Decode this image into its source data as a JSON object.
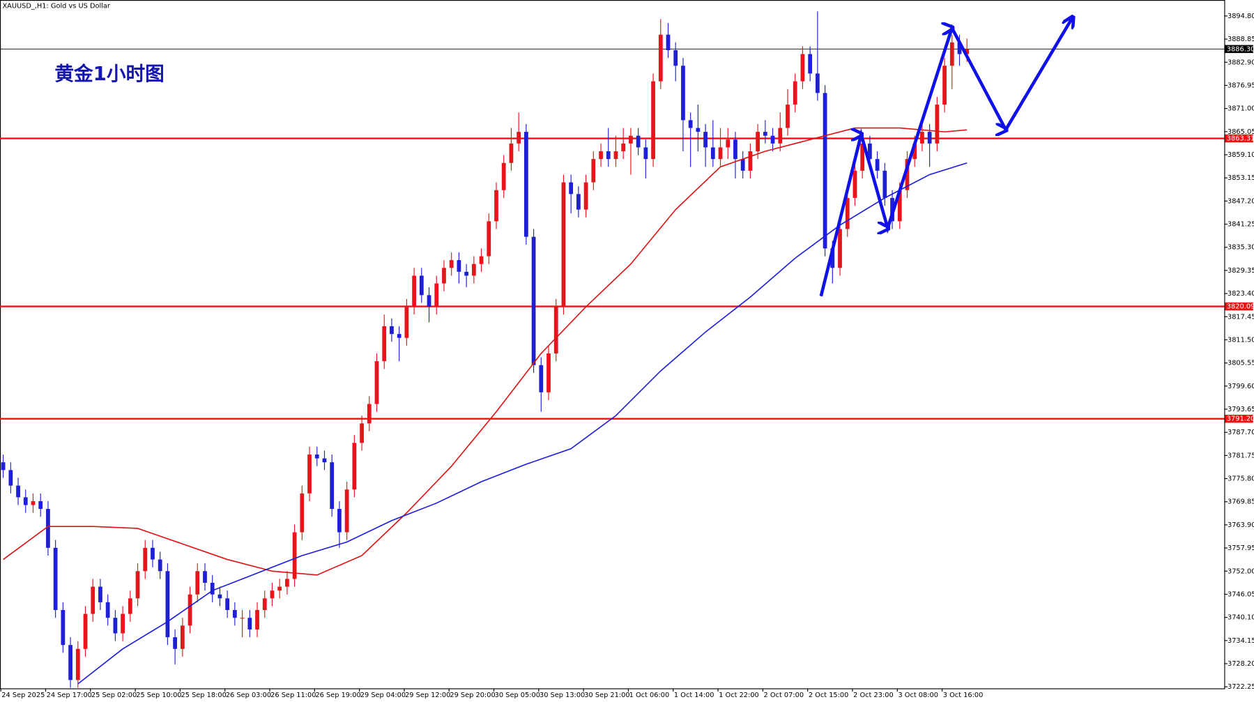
{
  "chart_data": {
    "type": "candlestick",
    "title": "XAUUSD_,H1:  Gold vs US Dollar",
    "annotation": "黄金1小时图",
    "categories": [
      "24 Sep 2025",
      null,
      null,
      null,
      null,
      null,
      "24 Sep 17:00",
      null,
      null,
      null,
      null,
      null,
      "25 Sep 02:00",
      null,
      null,
      null,
      null,
      null,
      "25 Sep 10:00",
      null,
      null,
      null,
      null,
      null,
      "25 Sep 18:00",
      null,
      null,
      null,
      null,
      null,
      "26 Sep 03:00",
      null,
      null,
      null,
      null,
      null,
      "26 Sep 11:00",
      null,
      null,
      null,
      null,
      null,
      "26 Sep 19:00",
      null,
      null,
      null,
      null,
      null,
      "29 Sep 04:00",
      null,
      null,
      null,
      null,
      null,
      "29 Sep 12:00",
      null,
      null,
      null,
      null,
      null,
      "29 Sep 20:00",
      null,
      null,
      null,
      null,
      null,
      "30 Sep 05:00",
      null,
      null,
      null,
      null,
      null,
      "30 Sep 13:00",
      null,
      null,
      null,
      null,
      null,
      "30 Sep 21:00",
      null,
      null,
      null,
      null,
      null,
      "1 Oct 06:00",
      null,
      null,
      null,
      null,
      null,
      "1 Oct 14:00",
      null,
      null,
      null,
      null,
      null,
      "1 Oct 22:00",
      null,
      null,
      null,
      null,
      null,
      "2 Oct 07:00",
      null,
      null,
      null,
      null,
      null,
      "2 Oct 15:00",
      null,
      null,
      null,
      null,
      null,
      "2 Oct 23:00",
      null,
      null,
      null,
      null,
      null,
      "3 Oct 08:00",
      null,
      null,
      null,
      null,
      null,
      "3 Oct 16:00",
      null,
      null,
      null
    ],
    "open": [
      3780,
      3778,
      3774,
      3771,
      3769,
      3770,
      3768,
      3758,
      3742,
      3733,
      3724,
      3732,
      3741,
      3748,
      3744,
      3740,
      3736,
      3741,
      3745,
      3752,
      3758,
      3755,
      3752,
      3735,
      3732,
      3738,
      3746,
      3752,
      3749,
      3746,
      3745,
      3742,
      3740,
      3740,
      3737,
      3742,
      3745,
      3747,
      3748,
      3750,
      3762,
      3772,
      3782,
      3781,
      3780,
      3768,
      3762,
      3773,
      3785,
      3790,
      3795,
      3806,
      3815,
      3813,
      3812,
      3820,
      3828,
      3823,
      3820,
      3826,
      3830,
      3832,
      3829,
      3828,
      3831,
      3833,
      3842,
      3850,
      3857,
      3862,
      3865,
      3838,
      3805,
      3798,
      3808,
      3820,
      3852,
      3849,
      3845,
      3852,
      3858,
      3860,
      3858,
      3860,
      3862,
      3864,
      3861,
      3858,
      3878,
      3890,
      3886,
      3882,
      3868,
      3866,
      3865,
      3861,
      3858,
      3861,
      3863,
      3858,
      3855,
      3860,
      3865,
      3864,
      3862,
      3866,
      3872,
      3878,
      3885,
      3880,
      3875,
      3835,
      3830,
      3840,
      3848,
      3855,
      3862,
      3858,
      3855,
      3848,
      3842,
      3850,
      3858,
      3862,
      3865,
      3862,
      3872,
      3882,
      3888,
      3885
    ],
    "high": [
      3782,
      3780,
      3776,
      3773,
      3772,
      3772,
      3770,
      3760,
      3744,
      3735,
      3734,
      3743,
      3750,
      3750,
      3746,
      3742,
      3743,
      3747,
      3754,
      3760,
      3760,
      3757,
      3754,
      3737,
      3740,
      3748,
      3754,
      3754,
      3751,
      3748,
      3747,
      3744,
      3742,
      3742,
      3744,
      3747,
      3749,
      3750,
      3752,
      3764,
      3774,
      3784,
      3784,
      3783,
      3782,
      3770,
      3775,
      3787,
      3792,
      3797,
      3808,
      3818,
      3817,
      3815,
      3822,
      3830,
      3830,
      3825,
      3828,
      3832,
      3834,
      3834,
      3831,
      3833,
      3835,
      3844,
      3852,
      3859,
      3866,
      3870,
      3867,
      3840,
      3807,
      3810,
      3822,
      3854,
      3854,
      3851,
      3854,
      3860,
      3862,
      3866,
      3864,
      3866,
      3866,
      3866,
      3863,
      3880,
      3894,
      3893,
      3888,
      3884,
      3870,
      3872,
      3867,
      3868,
      3866,
      3866,
      3865,
      3860,
      3862,
      3867,
      3868,
      3866,
      3870,
      3876,
      3880,
      3887,
      3887,
      3896,
      3877,
      3837,
      3842,
      3850,
      3857,
      3864,
      3864,
      3860,
      3857,
      3850,
      3852,
      3860,
      3864,
      3867,
      3867,
      3874,
      3884,
      3890,
      3890,
      3889
    ],
    "low": [
      3776,
      3772,
      3769,
      3767,
      3767,
      3766,
      3756,
      3740,
      3731,
      3722,
      3722,
      3730,
      3739,
      3742,
      3738,
      3734,
      3734,
      3739,
      3743,
      3750,
      3753,
      3750,
      3733,
      3728,
      3730,
      3736,
      3744,
      3747,
      3744,
      3743,
      3740,
      3738,
      3735,
      3735,
      3735,
      3740,
      3743,
      3745,
      3746,
      3748,
      3760,
      3770,
      3779,
      3778,
      3766,
      3758,
      3760,
      3771,
      3783,
      3788,
      3793,
      3804,
      3811,
      3806,
      3810,
      3818,
      3821,
      3816,
      3818,
      3824,
      3828,
      3826,
      3825,
      3826,
      3829,
      3831,
      3840,
      3848,
      3855,
      3860,
      3836,
      3803,
      3793,
      3796,
      3806,
      3818,
      3844,
      3843,
      3843,
      3850,
      3856,
      3856,
      3856,
      3858,
      3854,
      3859,
      3853,
      3856,
      3876,
      3884,
      3878,
      3860,
      3856,
      3860,
      3856,
      3856,
      3856,
      3858,
      3853,
      3853,
      3853,
      3858,
      3862,
      3860,
      3860,
      3864,
      3870,
      3876,
      3878,
      3873,
      3833,
      3826,
      3828,
      3838,
      3846,
      3853,
      3856,
      3853,
      3846,
      3840,
      3840,
      3848,
      3856,
      3860,
      3856,
      3860,
      3870,
      3876,
      3882,
      3883
    ],
    "close": [
      3778,
      3774,
      3771,
      3769,
      3770,
      3768,
      3758,
      3742,
      3733,
      3724,
      3732,
      3741,
      3748,
      3744,
      3740,
      3736,
      3741,
      3745,
      3752,
      3758,
      3755,
      3752,
      3735,
      3732,
      3738,
      3746,
      3752,
      3749,
      3746,
      3745,
      3742,
      3740,
      3740,
      3737,
      3742,
      3745,
      3747,
      3748,
      3750,
      3762,
      3772,
      3782,
      3781,
      3780,
      3768,
      3762,
      3773,
      3785,
      3790,
      3795,
      3806,
      3815,
      3813,
      3812,
      3820,
      3828,
      3823,
      3820,
      3826,
      3830,
      3832,
      3829,
      3828,
      3831,
      3833,
      3842,
      3850,
      3857,
      3862,
      3865,
      3838,
      3805,
      3798,
      3808,
      3820,
      3852,
      3849,
      3845,
      3852,
      3858,
      3860,
      3858,
      3860,
      3862,
      3864,
      3861,
      3858,
      3878,
      3890,
      3886,
      3882,
      3868,
      3866,
      3865,
      3861,
      3858,
      3861,
      3863,
      3858,
      3855,
      3860,
      3865,
      3864,
      3862,
      3866,
      3872,
      3878,
      3885,
      3880,
      3875,
      3835,
      3830,
      3840,
      3848,
      3855,
      3862,
      3858,
      3855,
      3848,
      3842,
      3850,
      3858,
      3862,
      3865,
      3862,
      3872,
      3882,
      3888,
      3885,
      3886.3
    ],
    "up_color": "#e8141b",
    "down_color": "#1f1fd6",
    "moving_averages": [
      {
        "color": "#e01010",
        "x": [
          0,
          6,
          12,
          18,
          24,
          30,
          36,
          42,
          48,
          54,
          60,
          66,
          72,
          78,
          84,
          90,
          96,
          102,
          108,
          114,
          120,
          126,
          129
        ],
        "values": [
          3755,
          3763.5,
          3763.5,
          3763,
          3759,
          3755,
          3752,
          3751,
          3756,
          3767,
          3779,
          3793,
          3808,
          3820,
          3831,
          3845,
          3856,
          3860,
          3863,
          3866,
          3866,
          3865,
          3865.5
        ]
      },
      {
        "color": "#1a1ae0",
        "x": [
          10,
          16,
          22,
          28,
          34,
          40,
          46,
          52,
          58,
          64,
          70,
          76,
          82,
          88,
          94,
          100,
          106,
          112,
          118,
          124,
          129
        ],
        "values": [
          3723,
          3732,
          3739,
          3747,
          3751.5,
          3756,
          3759.5,
          3765,
          3769.5,
          3775,
          3779.5,
          3783.5,
          3792,
          3803.5,
          3813.5,
          3822.5,
          3832.5,
          3841,
          3848,
          3854,
          3857
        ]
      }
    ],
    "levels": [
      {
        "value": 3863.31,
        "label": "3863.31",
        "color": "#ee1111"
      },
      {
        "value": 3820.09,
        "label": "3820.09",
        "color": "#ee1111"
      },
      {
        "value": 3791.2,
        "label": "3791.20",
        "color": "#ee1111"
      }
    ],
    "current_price": {
      "value": 3886.3,
      "label": "3886.30",
      "color": "#000000"
    },
    "ylim": [
      3721.84,
      3898.5
    ],
    "yticks": [
      {
        "value": 3894.8,
        "label": "3894.80"
      },
      {
        "value": 3888.85,
        "label": "3888.85"
      },
      {
        "value": 3882.9,
        "label": "3882.90"
      },
      {
        "value": 3876.95,
        "label": "3876.95"
      },
      {
        "value": 3871,
        "label": "3871.00"
      },
      {
        "value": 3865.05,
        "label": "3865.05"
      },
      {
        "value": 3859.1,
        "label": "3859.10"
      },
      {
        "value": 3853.15,
        "label": "3853.15"
      },
      {
        "value": 3847.2,
        "label": "3847.20"
      },
      {
        "value": 3841.25,
        "label": "3841.25"
      },
      {
        "value": 3835.3,
        "label": "3835.30"
      },
      {
        "value": 3829.35,
        "label": "3829.35"
      },
      {
        "value": 3823.4,
        "label": "3823.40"
      },
      {
        "value": 3817.45,
        "label": "3817.45"
      },
      {
        "value": 3811.5,
        "label": "3811.50"
      },
      {
        "value": 3805.55,
        "label": "3805.55"
      },
      {
        "value": 3799.6,
        "label": "3799.60"
      },
      {
        "value": 3793.65,
        "label": "3793.65"
      },
      {
        "value": 3787.7,
        "label": "3787.70"
      },
      {
        "value": 3781.75,
        "label": "3781.75"
      },
      {
        "value": 3775.8,
        "label": "3775.80"
      },
      {
        "value": 3769.85,
        "label": "3769.85"
      },
      {
        "value": 3763.9,
        "label": "3763.90"
      },
      {
        "value": 3757.95,
        "label": "3757.95"
      },
      {
        "value": 3752,
        "label": "3752.00"
      },
      {
        "value": 3746.05,
        "label": "3746.05"
      },
      {
        "value": 3740.1,
        "label": "3740.10"
      },
      {
        "value": 3734.15,
        "label": "3734.15"
      },
      {
        "value": 3728.2,
        "label": "3728.20"
      },
      {
        "value": 3722.25,
        "label": "3722.25"
      }
    ],
    "grid": false
  }
}
